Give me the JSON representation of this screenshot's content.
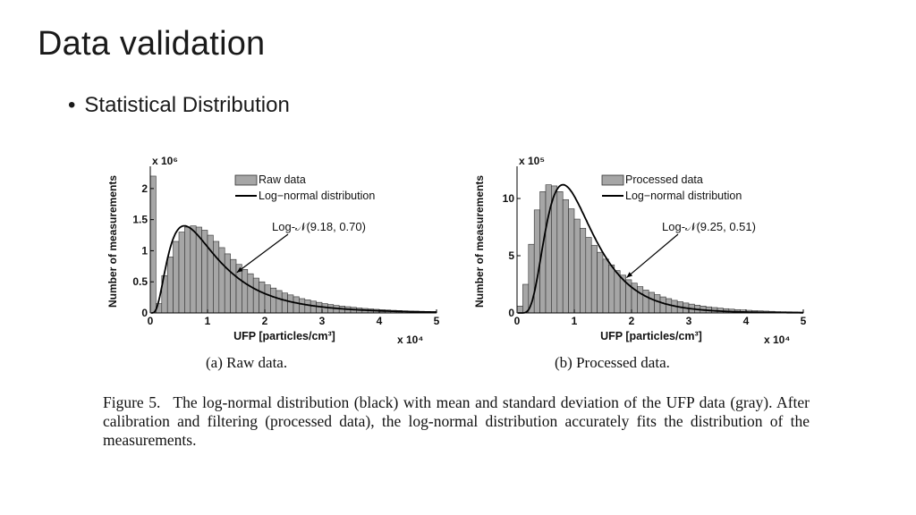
{
  "slide": {
    "title": "Data validation",
    "bullet": "Statistical Distribution"
  },
  "figure": {
    "caption_label": "Figure 5.",
    "caption_text": "The log-normal distribution (black) with mean and standard deviation of the UFP data (gray). After calibration and filtering (processed data), the log-normal distribution accurately fits the distribution of the measurements."
  },
  "chart_data": [
    {
      "type": "bar",
      "subcaption": "(a) Raw data.",
      "xlabel": "UFP [particles/cm³]",
      "x_multiplier": "x 10⁴",
      "ylabel": "Number of measurements",
      "y_multiplier": "x 10⁶",
      "xlim": [
        0,
        5
      ],
      "ylim": [
        0,
        2.3
      ],
      "xticks": [
        "0",
        "1",
        "2",
        "3",
        "4",
        "5"
      ],
      "yticks": [
        "0",
        "0.5",
        "1",
        "1.5",
        "2"
      ],
      "ytick_values": [
        0,
        0.5,
        1,
        1.5,
        2
      ],
      "legend": [
        "Raw data",
        "Log−normal distribution"
      ],
      "legend_position": "top-right",
      "annotation": "Log-𝒩(9.18, 0.70)",
      "fit": {
        "mu": 9.18,
        "sigma": 0.7
      },
      "bin_width": 0.1,
      "values": [
        2.2,
        0.15,
        0.6,
        0.9,
        1.15,
        1.3,
        1.38,
        1.4,
        1.38,
        1.33,
        1.25,
        1.15,
        1.05,
        0.95,
        0.86,
        0.78,
        0.7,
        0.63,
        0.56,
        0.5,
        0.45,
        0.4,
        0.36,
        0.32,
        0.29,
        0.26,
        0.23,
        0.21,
        0.19,
        0.17,
        0.15,
        0.135,
        0.12,
        0.11,
        0.1,
        0.09,
        0.08,
        0.072,
        0.065,
        0.058,
        0.052,
        0.047,
        0.042,
        0.038,
        0.034,
        0.03,
        0.027,
        0.024,
        0.022,
        0.02
      ]
    },
    {
      "type": "bar",
      "subcaption": "(b) Processed data.",
      "xlabel": "UFP [particles/cm³]",
      "x_multiplier": "x 10⁴",
      "ylabel": "Number of measurements",
      "y_multiplier": "x 10⁵",
      "xlim": [
        0,
        5
      ],
      "ylim": [
        0,
        12.5
      ],
      "xticks": [
        "0",
        "1",
        "2",
        "3",
        "4",
        "5"
      ],
      "yticks": [
        "0",
        "5",
        "10"
      ],
      "ytick_values": [
        0,
        5,
        10
      ],
      "legend": [
        "Processed data",
        "Log−normal distribution"
      ],
      "legend_position": "top-right",
      "annotation": "Log-𝒩(9.25, 0.51)",
      "fit": {
        "mu": 9.25,
        "sigma": 0.51
      },
      "bin_width": 0.1,
      "values": [
        0.6,
        2.5,
        6.0,
        9.0,
        10.6,
        11.2,
        11.1,
        10.6,
        9.9,
        9.1,
        8.2,
        7.4,
        6.6,
        5.9,
        5.3,
        4.7,
        4.2,
        3.7,
        3.3,
        2.9,
        2.6,
        2.3,
        2.0,
        1.8,
        1.6,
        1.4,
        1.25,
        1.1,
        0.98,
        0.87,
        0.77,
        0.68,
        0.6,
        0.53,
        0.47,
        0.42,
        0.37,
        0.33,
        0.29,
        0.26,
        0.23,
        0.2,
        0.18,
        0.16,
        0.14,
        0.12,
        0.11,
        0.1,
        0.09,
        0.08
      ]
    }
  ]
}
